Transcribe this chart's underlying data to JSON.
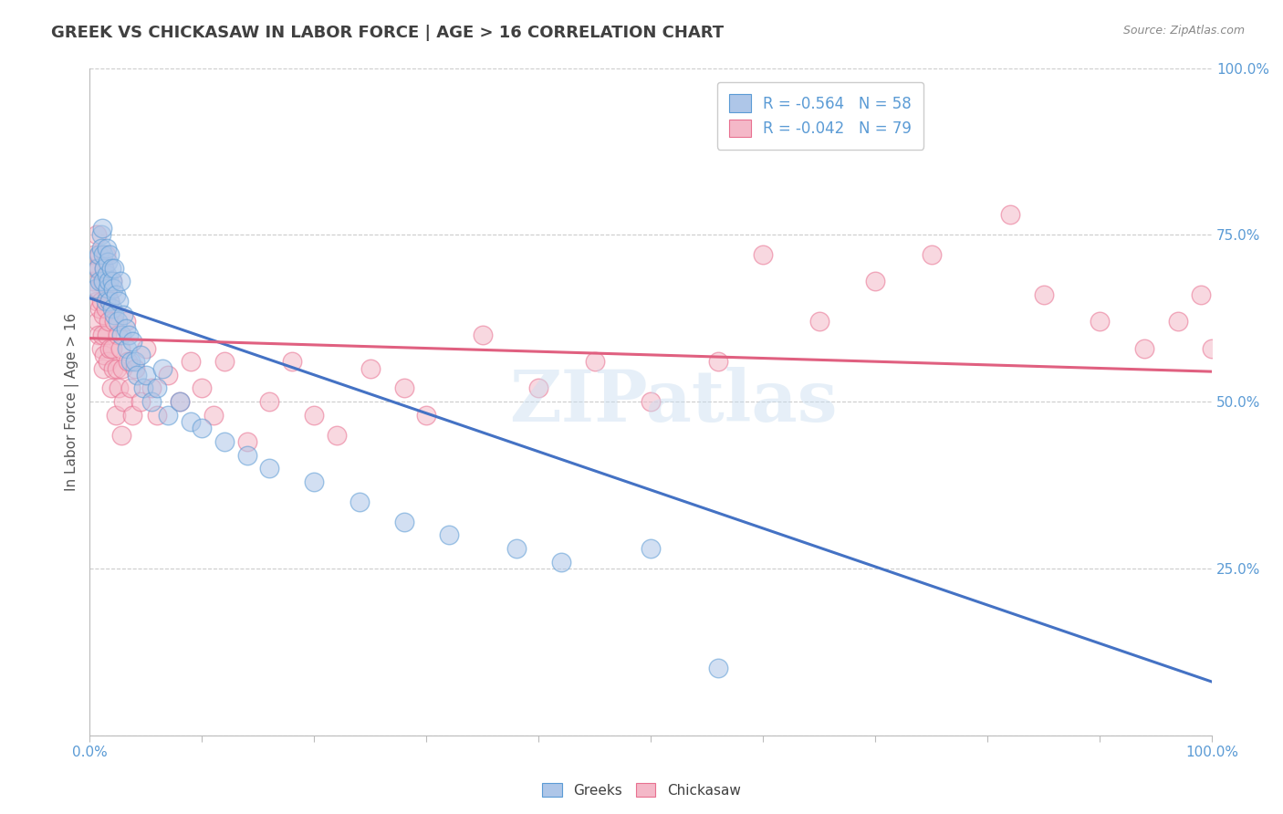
{
  "title": "GREEK VS CHICKASAW IN LABOR FORCE | AGE > 16 CORRELATION CHART",
  "source": "Source: ZipAtlas.com",
  "ylabel": "In Labor Force | Age > 16",
  "xlim": [
    0.0,
    1.0
  ],
  "ylim": [
    0.0,
    1.0
  ],
  "xticks": [
    0.0,
    0.1,
    0.2,
    0.3,
    0.4,
    0.5,
    0.6,
    0.7,
    0.8,
    0.9,
    1.0
  ],
  "yticks": [
    0.0,
    0.25,
    0.5,
    0.75,
    1.0
  ],
  "xticklabels": [
    "0.0%",
    "",
    "",
    "",
    "",
    "",
    "",
    "",
    "",
    "",
    "100.0%"
  ],
  "yticklabels": [
    "",
    "25.0%",
    "50.0%",
    "75.0%",
    "100.0%"
  ],
  "greek_R": -0.564,
  "greek_N": 58,
  "chickasaw_R": -0.042,
  "chickasaw_N": 79,
  "greek_color": "#aec6e8",
  "greek_edge_color": "#5b9bd5",
  "chickasaw_color": "#f4b8c8",
  "chickasaw_edge_color": "#e87090",
  "greek_line_color": "#4472c4",
  "chickasaw_line_color": "#e06080",
  "background_color": "#ffffff",
  "grid_color": "#cccccc",
  "title_color": "#404040",
  "axis_label_color": "#555555",
  "tick_color": "#5b9bd5",
  "legend_R_color": "#5b9bd5",
  "greek_line_y_start": 0.655,
  "greek_line_y_end": 0.08,
  "chickasaw_line_y_start": 0.595,
  "chickasaw_line_y_end": 0.545,
  "watermark": "ZIPatlas",
  "figsize": [
    14.06,
    8.92
  ],
  "dpi": 100,
  "greek_scatter_x": [
    0.005,
    0.007,
    0.008,
    0.009,
    0.01,
    0.01,
    0.011,
    0.012,
    0.012,
    0.013,
    0.014,
    0.015,
    0.015,
    0.016,
    0.016,
    0.017,
    0.018,
    0.018,
    0.019,
    0.02,
    0.02,
    0.021,
    0.022,
    0.022,
    0.023,
    0.025,
    0.026,
    0.027,
    0.028,
    0.03,
    0.032,
    0.033,
    0.035,
    0.036,
    0.038,
    0.04,
    0.042,
    0.045,
    0.048,
    0.05,
    0.055,
    0.06,
    0.065,
    0.07,
    0.08,
    0.09,
    0.1,
    0.12,
    0.14,
    0.16,
    0.2,
    0.24,
    0.28,
    0.32,
    0.38,
    0.42,
    0.5,
    0.56
  ],
  "greek_scatter_y": [
    0.67,
    0.7,
    0.72,
    0.68,
    0.75,
    0.73,
    0.76,
    0.72,
    0.68,
    0.7,
    0.65,
    0.69,
    0.73,
    0.67,
    0.71,
    0.68,
    0.72,
    0.65,
    0.7,
    0.68,
    0.64,
    0.67,
    0.7,
    0.63,
    0.66,
    0.62,
    0.65,
    0.68,
    0.6,
    0.63,
    0.61,
    0.58,
    0.6,
    0.56,
    0.59,
    0.56,
    0.54,
    0.57,
    0.52,
    0.54,
    0.5,
    0.52,
    0.55,
    0.48,
    0.5,
    0.47,
    0.46,
    0.44,
    0.42,
    0.4,
    0.38,
    0.35,
    0.32,
    0.3,
    0.28,
    0.26,
    0.28,
    0.1
  ],
  "chickasaw_scatter_x": [
    0.003,
    0.004,
    0.005,
    0.006,
    0.006,
    0.007,
    0.007,
    0.008,
    0.008,
    0.009,
    0.009,
    0.01,
    0.01,
    0.011,
    0.011,
    0.012,
    0.012,
    0.013,
    0.013,
    0.014,
    0.014,
    0.015,
    0.016,
    0.016,
    0.017,
    0.018,
    0.018,
    0.019,
    0.02,
    0.02,
    0.021,
    0.022,
    0.023,
    0.024,
    0.025,
    0.026,
    0.027,
    0.028,
    0.029,
    0.03,
    0.032,
    0.034,
    0.036,
    0.038,
    0.04,
    0.045,
    0.05,
    0.055,
    0.06,
    0.07,
    0.08,
    0.09,
    0.1,
    0.11,
    0.12,
    0.14,
    0.16,
    0.18,
    0.2,
    0.22,
    0.25,
    0.28,
    0.3,
    0.35,
    0.4,
    0.45,
    0.5,
    0.56,
    0.6,
    0.65,
    0.7,
    0.75,
    0.82,
    0.85,
    0.9,
    0.94,
    0.97,
    0.99,
    1.0
  ],
  "chickasaw_scatter_y": [
    0.68,
    0.72,
    0.7,
    0.65,
    0.75,
    0.62,
    0.67,
    0.6,
    0.7,
    0.64,
    0.72,
    0.58,
    0.65,
    0.6,
    0.68,
    0.55,
    0.63,
    0.7,
    0.57,
    0.64,
    0.72,
    0.6,
    0.66,
    0.56,
    0.62,
    0.58,
    0.65,
    0.52,
    0.58,
    0.68,
    0.55,
    0.62,
    0.48,
    0.55,
    0.6,
    0.52,
    0.58,
    0.45,
    0.55,
    0.5,
    0.62,
    0.56,
    0.52,
    0.48,
    0.55,
    0.5,
    0.58,
    0.52,
    0.48,
    0.54,
    0.5,
    0.56,
    0.52,
    0.48,
    0.56,
    0.44,
    0.5,
    0.56,
    0.48,
    0.45,
    0.55,
    0.52,
    0.48,
    0.6,
    0.52,
    0.56,
    0.5,
    0.56,
    0.72,
    0.62,
    0.68,
    0.72,
    0.78,
    0.66,
    0.62,
    0.58,
    0.62,
    0.66,
    0.58
  ]
}
